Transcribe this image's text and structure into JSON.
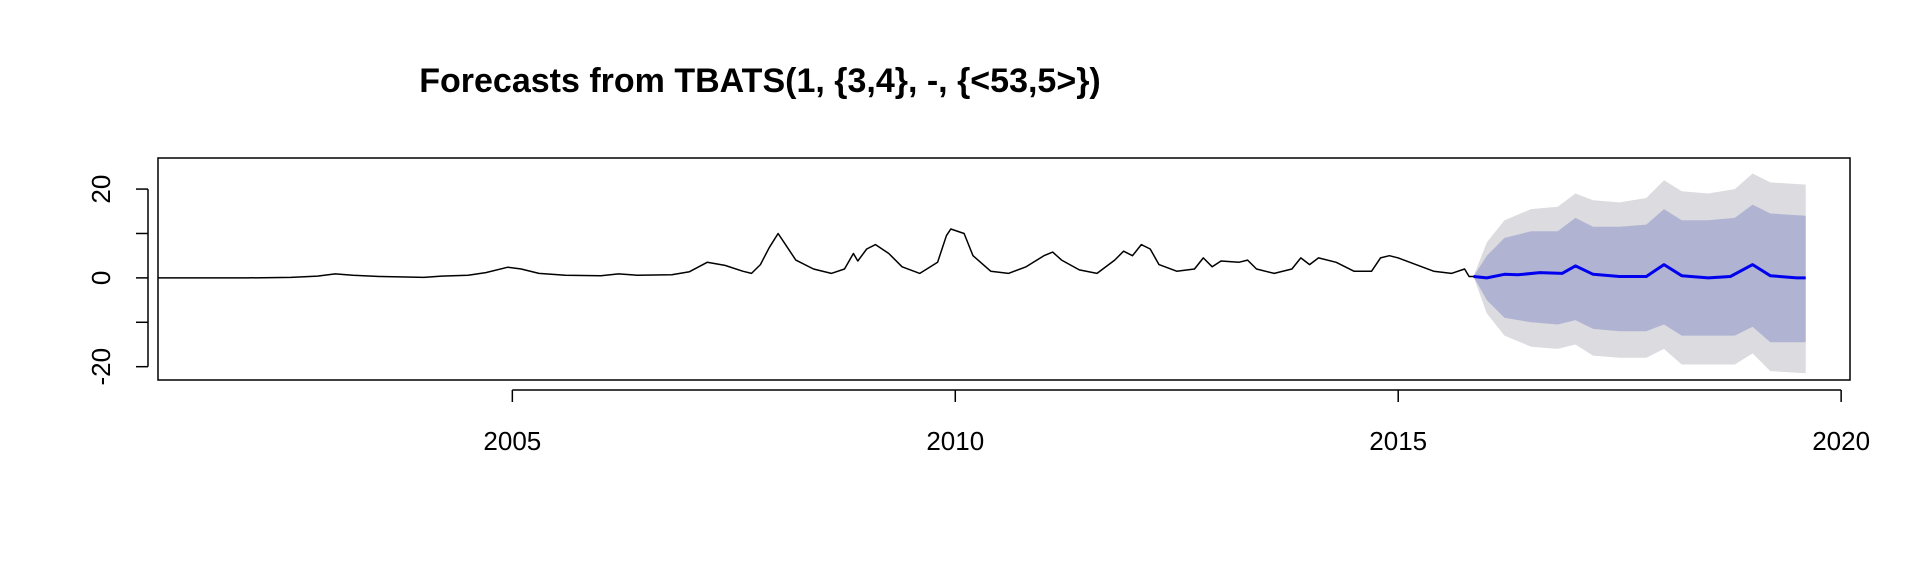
{
  "chart_data": {
    "type": "line",
    "title": "Forecasts from TBATS(1, {3,4}, -, {<53,5>})",
    "xlabel": "",
    "ylabel": "",
    "xlim": [
      2001.0,
      2020.1
    ],
    "ylim": [
      -23,
      27
    ],
    "x_ticks": [
      2005,
      2010,
      2015,
      2020
    ],
    "y_ticks": [
      -20,
      0,
      20
    ],
    "y_minor_ticks": [
      -10,
      10
    ],
    "grid": false,
    "colors": {
      "history": "#000000",
      "forecast": "#0000ee",
      "band80": "#b0b4d2",
      "band95": "#dbdbe0",
      "axis": "#000000"
    },
    "series": [
      {
        "role": "history",
        "points": [
          [
            2001.0,
            0
          ],
          [
            2001.5,
            0
          ],
          [
            2002.0,
            0
          ],
          [
            2002.5,
            0.1
          ],
          [
            2002.8,
            0.4
          ],
          [
            2003.0,
            0.9
          ],
          [
            2003.2,
            0.6
          ],
          [
            2003.5,
            0.3
          ],
          [
            2004.0,
            0.1
          ],
          [
            2004.2,
            0.4
          ],
          [
            2004.5,
            0.6
          ],
          [
            2004.7,
            1.2
          ],
          [
            2004.95,
            2.4
          ],
          [
            2005.1,
            2.0
          ],
          [
            2005.3,
            1.0
          ],
          [
            2005.6,
            0.6
          ],
          [
            2006.0,
            0.5
          ],
          [
            2006.2,
            0.9
          ],
          [
            2006.4,
            0.6
          ],
          [
            2006.8,
            0.7
          ],
          [
            2007.0,
            1.4
          ],
          [
            2007.2,
            3.5
          ],
          [
            2007.4,
            2.8
          ],
          [
            2007.6,
            1.5
          ],
          [
            2007.7,
            1.0
          ],
          [
            2007.8,
            3.0
          ],
          [
            2007.9,
            6.8
          ],
          [
            2008.0,
            10.0
          ],
          [
            2008.1,
            7.0
          ],
          [
            2008.2,
            4.0
          ],
          [
            2008.4,
            2.0
          ],
          [
            2008.6,
            1.0
          ],
          [
            2008.75,
            2.0
          ],
          [
            2008.85,
            5.5
          ],
          [
            2008.9,
            3.8
          ],
          [
            2009.0,
            6.5
          ],
          [
            2009.1,
            7.5
          ],
          [
            2009.25,
            5.5
          ],
          [
            2009.4,
            2.5
          ],
          [
            2009.6,
            1.0
          ],
          [
            2009.8,
            3.5
          ],
          [
            2009.9,
            9.5
          ],
          [
            2009.95,
            11.0
          ],
          [
            2010.1,
            10.0
          ],
          [
            2010.2,
            5.0
          ],
          [
            2010.4,
            1.5
          ],
          [
            2010.6,
            1.0
          ],
          [
            2010.8,
            2.5
          ],
          [
            2011.0,
            5.0
          ],
          [
            2011.1,
            5.8
          ],
          [
            2011.2,
            4.0
          ],
          [
            2011.4,
            1.8
          ],
          [
            2011.6,
            1.0
          ],
          [
            2011.8,
            4.0
          ],
          [
            2011.9,
            6.0
          ],
          [
            2012.0,
            5.0
          ],
          [
            2012.1,
            7.5
          ],
          [
            2012.2,
            6.5
          ],
          [
            2012.3,
            3.0
          ],
          [
            2012.5,
            1.5
          ],
          [
            2012.7,
            2.0
          ],
          [
            2012.8,
            4.5
          ],
          [
            2012.9,
            2.5
          ],
          [
            2013.0,
            3.8
          ],
          [
            2013.2,
            3.5
          ],
          [
            2013.3,
            4.0
          ],
          [
            2013.4,
            2.0
          ],
          [
            2013.6,
            1.0
          ],
          [
            2013.8,
            2.0
          ],
          [
            2013.9,
            4.5
          ],
          [
            2014.0,
            3.0
          ],
          [
            2014.1,
            4.5
          ],
          [
            2014.3,
            3.5
          ],
          [
            2014.5,
            1.5
          ],
          [
            2014.7,
            1.5
          ],
          [
            2014.8,
            4.5
          ],
          [
            2014.9,
            5.0
          ],
          [
            2015.0,
            4.5
          ],
          [
            2015.2,
            3.0
          ],
          [
            2015.4,
            1.5
          ],
          [
            2015.6,
            1.0
          ],
          [
            2015.75,
            2.0
          ],
          [
            2015.8,
            0.3
          ],
          [
            2015.85,
            0.3
          ]
        ]
      },
      {
        "role": "forecast",
        "points": [
          [
            2015.85,
            0.3
          ],
          [
            2016.0,
            0.0
          ],
          [
            2016.2,
            0.8
          ],
          [
            2016.35,
            0.7
          ],
          [
            2016.6,
            1.2
          ],
          [
            2016.85,
            1.0
          ],
          [
            2017.0,
            2.7
          ],
          [
            2017.2,
            0.8
          ],
          [
            2017.5,
            0.3
          ],
          [
            2017.8,
            0.3
          ],
          [
            2018.0,
            3.0
          ],
          [
            2018.2,
            0.5
          ],
          [
            2018.5,
            0
          ],
          [
            2018.75,
            0.3
          ],
          [
            2019.0,
            3.0
          ],
          [
            2019.2,
            0.5
          ],
          [
            2019.5,
            0
          ],
          [
            2019.6,
            0
          ]
        ]
      }
    ],
    "bands": [
      {
        "level": "95",
        "upper": [
          [
            2015.85,
            0.3
          ],
          [
            2016.0,
            8
          ],
          [
            2016.2,
            13
          ],
          [
            2016.5,
            15.5
          ],
          [
            2016.8,
            16
          ],
          [
            2017.0,
            19
          ],
          [
            2017.2,
            17.5
          ],
          [
            2017.5,
            17
          ],
          [
            2017.8,
            18
          ],
          [
            2018.0,
            22
          ],
          [
            2018.2,
            19.5
          ],
          [
            2018.5,
            19
          ],
          [
            2018.8,
            20
          ],
          [
            2019.0,
            23.5
          ],
          [
            2019.2,
            21.5
          ],
          [
            2019.6,
            21
          ]
        ],
        "lower": [
          [
            2015.85,
            0.3
          ],
          [
            2016.0,
            -8
          ],
          [
            2016.2,
            -13
          ],
          [
            2016.5,
            -15.5
          ],
          [
            2016.8,
            -16
          ],
          [
            2017.0,
            -15
          ],
          [
            2017.2,
            -17.5
          ],
          [
            2017.5,
            -18
          ],
          [
            2017.8,
            -18
          ],
          [
            2018.0,
            -16
          ],
          [
            2018.2,
            -19.5
          ],
          [
            2018.5,
            -19.5
          ],
          [
            2018.8,
            -19.5
          ],
          [
            2019.0,
            -17
          ],
          [
            2019.2,
            -21
          ],
          [
            2019.6,
            -21.5
          ]
        ]
      },
      {
        "level": "80",
        "upper": [
          [
            2015.85,
            0.3
          ],
          [
            2016.0,
            5
          ],
          [
            2016.2,
            9
          ],
          [
            2016.5,
            10.5
          ],
          [
            2016.8,
            10.5
          ],
          [
            2017.0,
            13.5
          ],
          [
            2017.2,
            11.5
          ],
          [
            2017.5,
            11.5
          ],
          [
            2017.8,
            12
          ],
          [
            2018.0,
            15.5
          ],
          [
            2018.2,
            13
          ],
          [
            2018.5,
            13
          ],
          [
            2018.8,
            13.5
          ],
          [
            2019.0,
            16.5
          ],
          [
            2019.2,
            14.5
          ],
          [
            2019.6,
            14
          ]
        ],
        "lower": [
          [
            2015.85,
            0.3
          ],
          [
            2016.0,
            -5
          ],
          [
            2016.2,
            -9
          ],
          [
            2016.5,
            -10
          ],
          [
            2016.8,
            -10.5
          ],
          [
            2017.0,
            -9.5
          ],
          [
            2017.2,
            -11.5
          ],
          [
            2017.5,
            -12
          ],
          [
            2017.8,
            -12
          ],
          [
            2018.0,
            -10.5
          ],
          [
            2018.2,
            -13
          ],
          [
            2018.5,
            -13
          ],
          [
            2018.8,
            -13
          ],
          [
            2019.0,
            -11
          ],
          [
            2019.2,
            -14.5
          ],
          [
            2019.6,
            -14.5
          ]
        ]
      }
    ]
  }
}
